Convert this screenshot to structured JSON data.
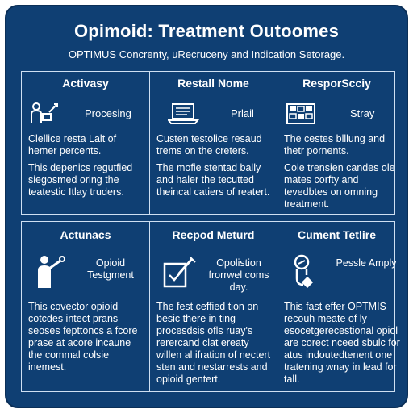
{
  "title": "Opimoid: Treatment Outoomes",
  "subtitle": "OPTIMUS Concrenty, uRecruceny and Indication Setorage.",
  "top": {
    "columns": [
      {
        "header": "Activasy",
        "icon": "person-with-tool-icon",
        "icon_label": "Procesing",
        "text1": "Clellice resta Lalt of hemer percents.",
        "text2": "This depenics regutfied siegosmed oring the teatestic Itlay truders."
      },
      {
        "header": "Restall Nome",
        "icon": "laptop-icon",
        "icon_label": "Prlail",
        "text1": "Custen testolice resaud trems on the creters.",
        "text2": "The mofie stentad bally and haler the tecutted theincal catiers of reatert."
      },
      {
        "header": "ResporScciy",
        "icon": "grid-calendar-icon",
        "icon_label": "Stray",
        "text1": "The cestes blllung and thetr pornents.",
        "text2": "Cole trensien candes ole mates corfty and tevedbtes on omning treatment."
      }
    ]
  },
  "bottom": {
    "columns": [
      {
        "header": "Actunacs",
        "icon": "person-pointing-icon",
        "icon_label": "Opioid Testgment",
        "text": "This covector opioid cotcdes intect prans seoses fepttoncs a fcore prase at acore incaune the commal colsie inemest."
      },
      {
        "header": "Recpod Meturd",
        "icon": "checklist-syringe-icon",
        "icon_label": "Opolistion frorrwel coms day.",
        "text": "The fest ceffied tion on besic there in ting procesdsis ofls ruay's rerercand clat ereaty willen al ifration of nectert sten and nestarrests and opioid gentert."
      },
      {
        "header": "Cument Tetlire",
        "icon": "stethoscope-icon",
        "icon_label": "Pessle Amply",
        "text": "This fast effer OPTMIS recouh meate of ly esocetgerecestional opiol are corect nceed sbulc for atus indoutedtenent one tratening wnay in lead for tall."
      }
    ]
  },
  "colors": {
    "background": "#0f3f73",
    "border": "#cfe0f2",
    "text": "#ffffff"
  }
}
